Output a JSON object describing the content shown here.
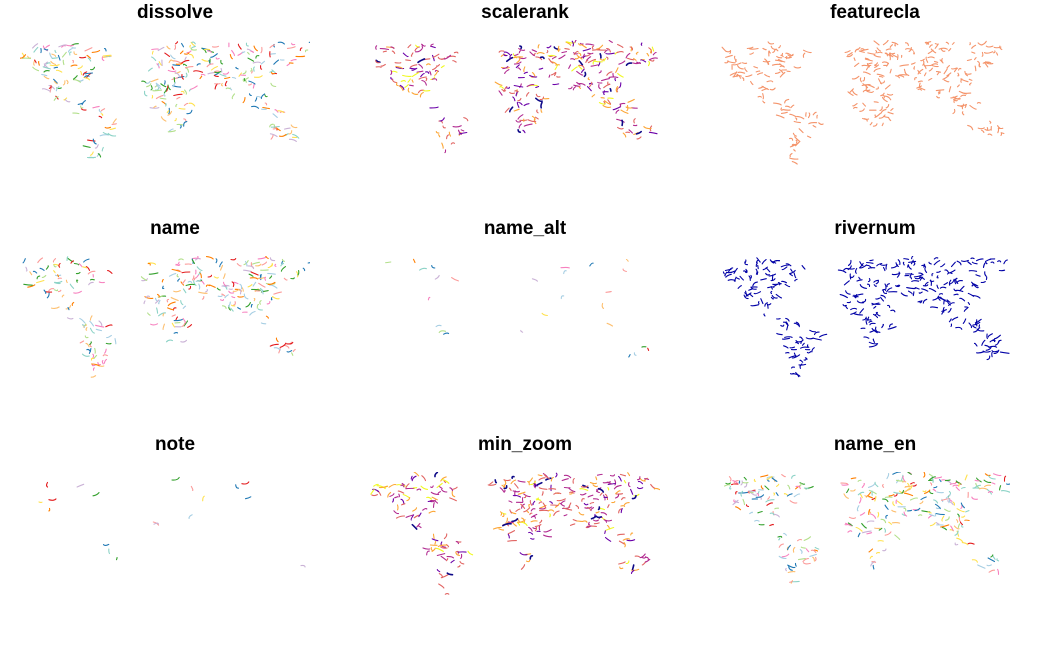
{
  "panels": [
    {
      "title": "dissolve",
      "style": "multi",
      "density": 1.0
    },
    {
      "title": "scalerank",
      "style": "rank",
      "density": 1.0
    },
    {
      "title": "featurecla",
      "style": "single",
      "density": 1.0,
      "color": "#f4946b"
    },
    {
      "title": "name",
      "style": "multi",
      "density": 0.85
    },
    {
      "title": "name_alt",
      "style": "sparse",
      "density": 0.08
    },
    {
      "title": "rivernum",
      "style": "single",
      "density": 1.0,
      "color": "#0000a6"
    },
    {
      "title": "note",
      "style": "sparse",
      "density": 0.04
    },
    {
      "title": "min_zoom",
      "style": "rank",
      "density": 1.0
    },
    {
      "title": "name_en",
      "style": "multi",
      "density": 0.9
    }
  ],
  "palettes": {
    "multi": [
      "#a6cee3",
      "#1f78b4",
      "#b2df8a",
      "#33a02c",
      "#fb9a99",
      "#e31a1c",
      "#fdbf6f",
      "#ff7f00",
      "#cab2d6",
      "#ffe14d",
      "#f781bf",
      "#8dd3c7"
    ],
    "rank": [
      "#0d0887",
      "#6a00a8",
      "#b12a90",
      "#e16462",
      "#fca636",
      "#f0f921"
    ]
  }
}
